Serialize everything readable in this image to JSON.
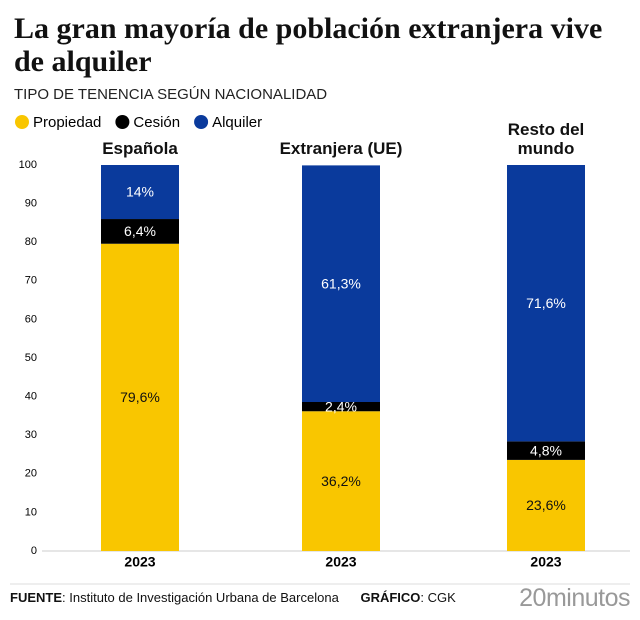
{
  "chart_data": {
    "type": "bar",
    "stacked": true,
    "title": "La gran mayoría de población extranjera vive de alquiler",
    "subtitle": "TIPO DE TENENCIA SEGÚN NACIONALIDAD",
    "categories": [
      "Española",
      "Extranjera (UE)",
      "Resto del mundo"
    ],
    "period": "2023",
    "series": [
      {
        "name": "Propiedad",
        "color": "#f9c600",
        "values": [
          79.6,
          36.2,
          23.6
        ],
        "value_labels": [
          "79,6%",
          "36,2%",
          "23,6%"
        ]
      },
      {
        "name": "Cesión",
        "color": "#000000",
        "values": [
          6.4,
          2.4,
          4.8
        ],
        "value_labels": [
          "6,4%",
          "2,4%",
          "4,8%"
        ]
      },
      {
        "name": "Alquiler",
        "color": "#0a3a9c",
        "values": [
          14,
          61.3,
          71.6
        ],
        "value_labels": [
          "14%",
          "61,3%",
          "71,6%"
        ]
      }
    ],
    "ylim": [
      0,
      100
    ],
    "yticks": [
      0,
      10,
      20,
      30,
      40,
      50,
      60,
      70,
      80,
      90,
      100
    ],
    "grid": false
  },
  "footer": {
    "source_label": "FUENTE",
    "source": "Instituto de Investigación Urbana de Barcelona",
    "credit_label": "GRÁFICO",
    "credit": "CGK",
    "logo": "20minutos"
  }
}
